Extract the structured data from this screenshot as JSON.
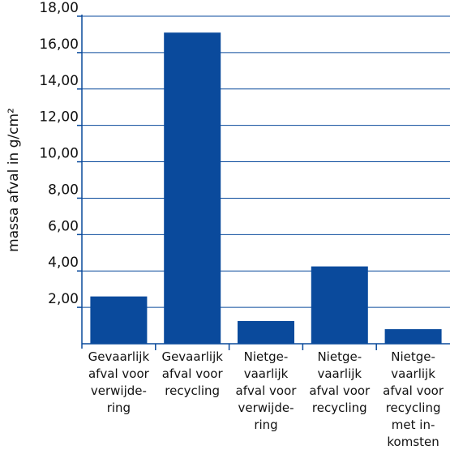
{
  "chart_data": {
    "type": "bar",
    "title": "",
    "xlabel": "",
    "ylabel": "massa afval in g/cm²",
    "ylim": [
      0,
      18
    ],
    "yticks": [
      "2,00",
      "4,00",
      "6,00",
      "8,00",
      "10,00",
      "12,00",
      "14,00",
      "16,00",
      "18,00"
    ],
    "grid": true,
    "categories": [
      [
        "Gevaarlijk",
        "afval voor",
        "verwijde-",
        "ring"
      ],
      [
        "Gevaarlijk",
        "afval voor",
        "recycling"
      ],
      [
        "Nietge-",
        "vaarlijk",
        "afval voor",
        "verwijde-",
        "ring"
      ],
      [
        "Nietge-",
        "vaarlijk",
        "afval voor",
        "recycling"
      ],
      [
        "Nietge-",
        "vaarlijk",
        "afval voor",
        "recycling",
        "met in-",
        "komsten"
      ]
    ],
    "values": [
      2.6,
      17.1,
      1.25,
      4.25,
      0.8
    ],
    "colors": {
      "bar": "#0a4a9c",
      "axis": "#0a4a9c",
      "grid": "#0a4a9c"
    }
  }
}
